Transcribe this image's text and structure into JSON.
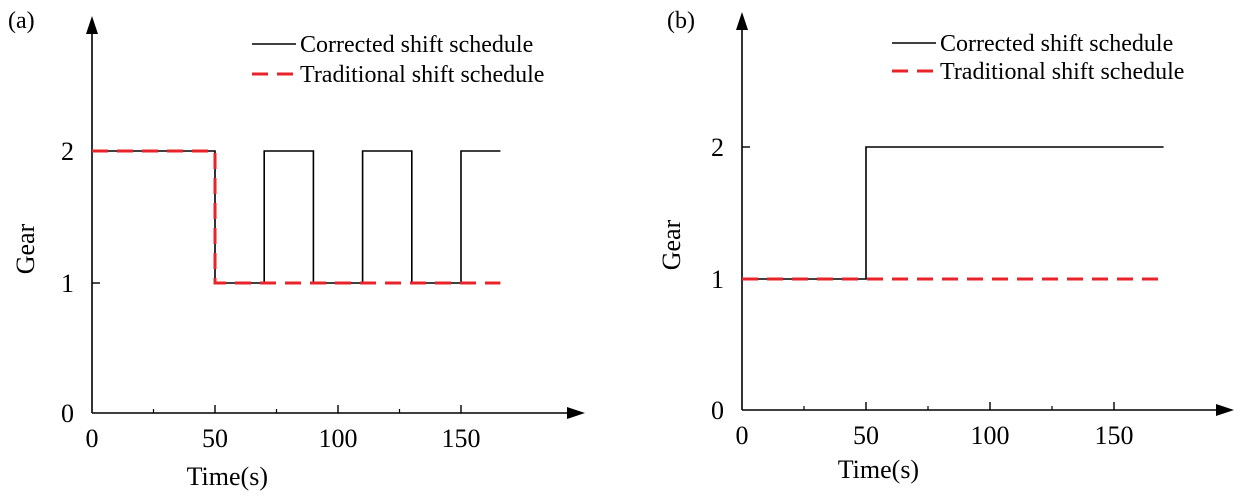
{
  "chart_data": [
    {
      "panel_label": "(a)",
      "type": "line",
      "xlabel": "Time(s)",
      "ylabel": "Gear",
      "xlim": [
        0,
        200
      ],
      "ylim": [
        0,
        3
      ],
      "xticks": [
        0,
        50,
        100,
        150
      ],
      "xticks_minor": [
        25,
        75,
        125
      ],
      "yticks": [
        0,
        1,
        2
      ],
      "grid": false,
      "legend_position": "top-right",
      "series": [
        {
          "name": "Corrected shift schedule",
          "style": "solid",
          "color": "#000000",
          "x": [
            0,
            50,
            50,
            70,
            70,
            90,
            90,
            110,
            110,
            130,
            130,
            150,
            150,
            166
          ],
          "y": [
            2,
            2,
            1,
            1,
            2,
            2,
            1,
            1,
            2,
            2,
            1,
            1,
            2,
            2
          ]
        },
        {
          "name": "Traditional shift schedule",
          "style": "dashed",
          "color": "#e8232a",
          "x": [
            0,
            50,
            50,
            166
          ],
          "y": [
            2,
            2,
            1,
            1
          ]
        }
      ]
    },
    {
      "panel_label": "(b)",
      "type": "line",
      "xlabel": "Time(s)",
      "ylabel": "Gear",
      "xlim": [
        0,
        200
      ],
      "ylim": [
        0,
        3
      ],
      "xticks": [
        0,
        50,
        100,
        150
      ],
      "xticks_minor": [
        25,
        75,
        125
      ],
      "yticks": [
        0,
        1,
        2
      ],
      "grid": false,
      "legend_position": "top-right",
      "series": [
        {
          "name": "Corrected shift schedule",
          "style": "solid",
          "color": "#000000",
          "x": [
            0,
            50,
            50,
            170
          ],
          "y": [
            1,
            1,
            2,
            2
          ]
        },
        {
          "name": "Traditional shift schedule",
          "style": "dashed",
          "color": "#e8232a",
          "x": [
            0,
            170
          ],
          "y": [
            1,
            1
          ]
        }
      ]
    }
  ]
}
